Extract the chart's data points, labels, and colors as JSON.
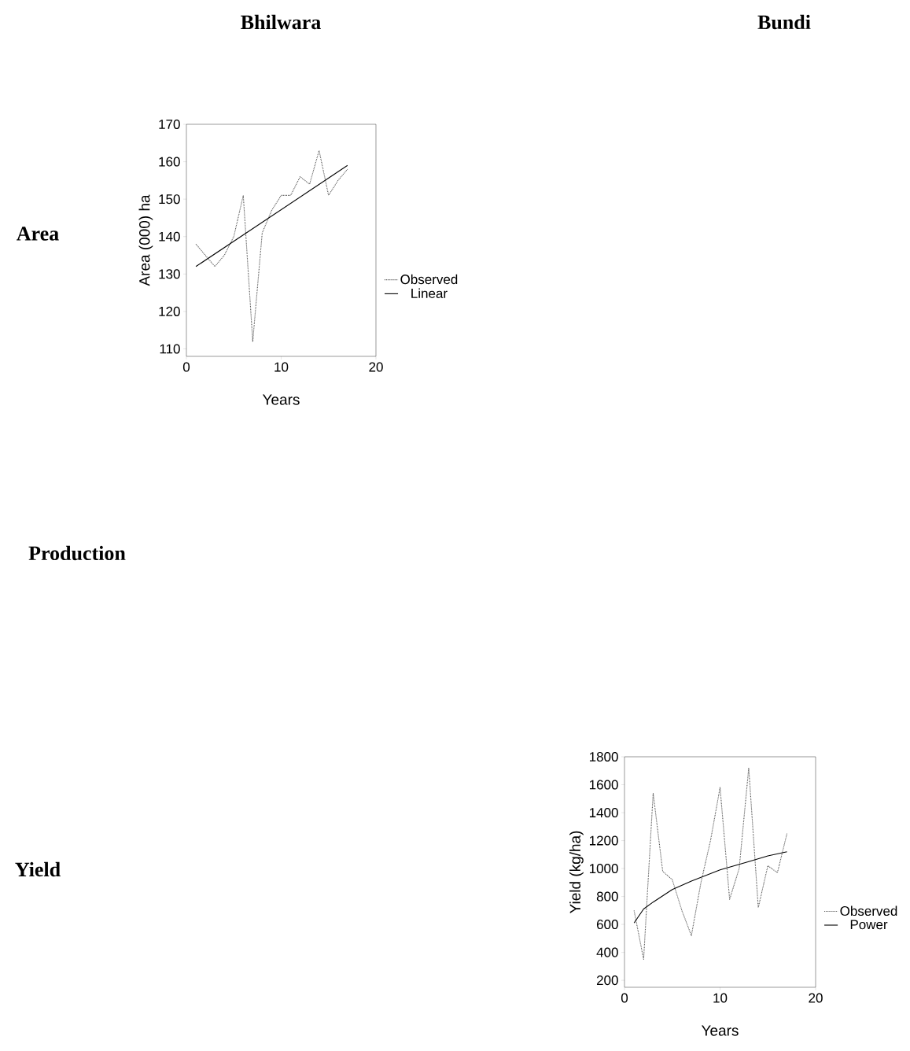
{
  "chart_data": [
    {
      "type": "line",
      "xlabel": "Years",
      "ylabel": "Area (000) ha",
      "x": [
        1,
        2,
        3,
        4,
        5,
        6,
        7,
        8,
        9,
        10,
        11,
        12,
        13,
        14,
        15,
        16,
        17
      ],
      "xlim": [
        0,
        20
      ],
      "xticks": [
        0,
        10,
        20
      ],
      "ylim": [
        108,
        170
      ],
      "yticks": [
        110,
        120,
        130,
        140,
        150,
        160,
        170
      ],
      "legend": "right",
      "series": [
        {
          "name": "Observed",
          "color": "#555555",
          "line_style": "dotted",
          "values": [
            138,
            135,
            132,
            135,
            140,
            151,
            112,
            141,
            147,
            151,
            151,
            156,
            154,
            163,
            151,
            155,
            158
          ]
        },
        {
          "name": "Linear",
          "color": "#000000",
          "line_style": "solid",
          "x": [
            1,
            17
          ],
          "values": [
            132,
            159
          ]
        }
      ]
    },
    {
      "type": "line",
      "xlabel": "Years",
      "ylabel": "Yield  (kg/ha)",
      "x": [
        1,
        2,
        3,
        4,
        5,
        6,
        7,
        8,
        9,
        10,
        11,
        12,
        13,
        14,
        15,
        16,
        17
      ],
      "xlim": [
        0,
        20
      ],
      "xticks": [
        0,
        10,
        20
      ],
      "ylim": [
        150,
        1800
      ],
      "yticks": [
        200,
        400,
        600,
        800,
        1000,
        1200,
        1400,
        1600,
        1800
      ],
      "legend": "right",
      "series": [
        {
          "name": "Observed",
          "color": "#555555",
          "line_style": "dotted",
          "values": [
            700,
            350,
            1540,
            980,
            920,
            700,
            520,
            900,
            1200,
            1580,
            780,
            1000,
            1720,
            720,
            1020,
            970,
            1250
          ]
        },
        {
          "name": "Power",
          "color": "#000000",
          "line_style": "solid",
          "x": [
            1,
            2,
            3,
            5,
            7,
            10,
            13,
            15,
            17
          ],
          "values": [
            610,
            710,
            760,
            850,
            910,
            990,
            1050,
            1090,
            1120
          ]
        }
      ]
    },
    {
      "type": "other",
      "annotations": [
        "Bhilwara",
        "Bundi",
        "Area",
        "Production",
        "Yield"
      ]
    }
  ]
}
